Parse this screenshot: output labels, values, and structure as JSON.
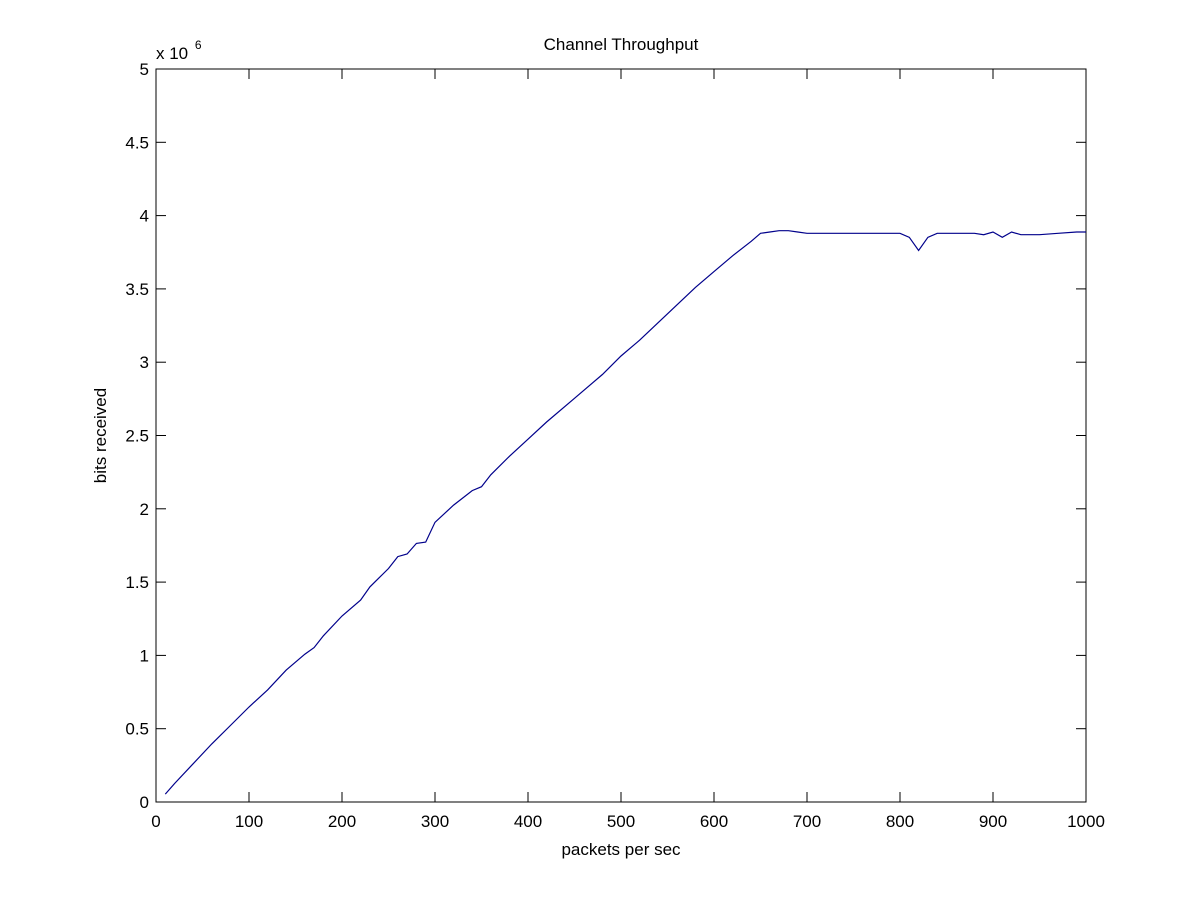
{
  "chart_data": {
    "type": "line",
    "title": "Channel Throughput",
    "xlabel": "packets per sec",
    "ylabel": "bits received",
    "y_multiplier": {
      "base": "x 10",
      "exponent": "6"
    },
    "xlim": [
      0,
      1000
    ],
    "ylim": [
      0,
      5
    ],
    "x_ticks": [
      0,
      100,
      200,
      300,
      400,
      500,
      600,
      700,
      800,
      900,
      1000
    ],
    "x_tick_labels": [
      "0",
      "100",
      "200",
      "300",
      "400",
      "500",
      "600",
      "700",
      "800",
      "900",
      "1000"
    ],
    "y_ticks": [
      0,
      0.5,
      1,
      1.5,
      2,
      2.5,
      3,
      3.5,
      4,
      4.5,
      5
    ],
    "y_tick_labels": [
      "0",
      "0.5",
      "1",
      "1.5",
      "2",
      "2.5",
      "3",
      "3.5",
      "4",
      "4.5",
      "5"
    ],
    "grid": false,
    "series": [
      {
        "color": "#00008b",
        "x": [
          10,
          20,
          40,
          60,
          80,
          100,
          120,
          140,
          160,
          170,
          180,
          200,
          220,
          230,
          240,
          250,
          260,
          270,
          280,
          290,
          300,
          320,
          340,
          350,
          360,
          380,
          400,
          420,
          450,
          480,
          500,
          520,
          550,
          580,
          600,
          620,
          640,
          650,
          660,
          670,
          680,
          690,
          700,
          720,
          750,
          780,
          800,
          810,
          820,
          830,
          840,
          860,
          880,
          890,
          900,
          910,
          920,
          930,
          950,
          970,
          990,
          1000
        ],
        "y": [
          0.06,
          0.14,
          0.29,
          0.44,
          0.58,
          0.72,
          0.85,
          1.0,
          1.12,
          1.17,
          1.26,
          1.41,
          1.53,
          1.63,
          1.7,
          1.77,
          1.86,
          1.88,
          1.96,
          1.97,
          2.12,
          2.25,
          2.36,
          2.39,
          2.48,
          2.62,
          2.75,
          2.88,
          3.06,
          3.24,
          3.38,
          3.5,
          3.7,
          3.9,
          4.02,
          4.14,
          4.25,
          4.31,
          4.32,
          4.33,
          4.33,
          4.32,
          4.31,
          4.31,
          4.31,
          4.31,
          4.31,
          4.28,
          4.18,
          4.28,
          4.31,
          4.31,
          4.31,
          4.3,
          4.32,
          4.28,
          4.32,
          4.3,
          4.3,
          4.31,
          4.32,
          4.32
        ]
      }
    ]
  }
}
